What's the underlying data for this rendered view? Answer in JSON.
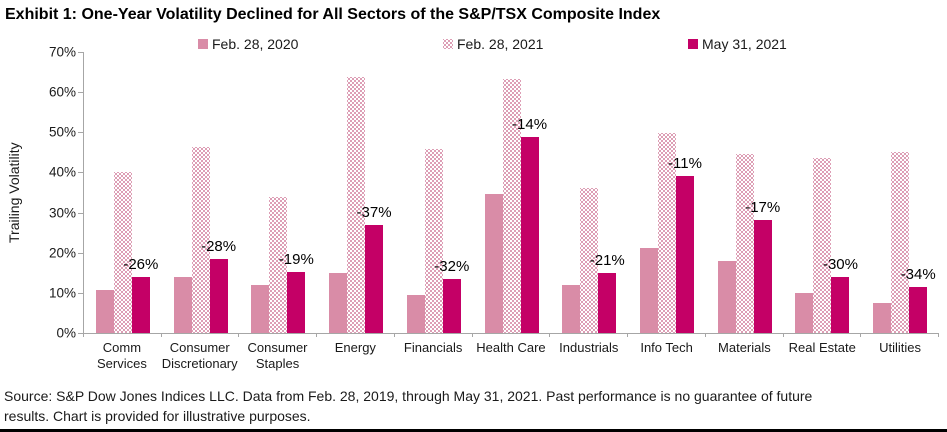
{
  "page": {
    "title": "Exhibit 1: One-Year Volatility Declined for All Sectors of the S&P/TSX Composite Index"
  },
  "legend": {
    "items": [
      {
        "label": "Feb. 28, 2020"
      },
      {
        "label": "Feb. 28, 2021"
      },
      {
        "label": "May 31, 2021"
      }
    ]
  },
  "colors": {
    "feb2020": "#d98ca7",
    "feb2021_dot": "#d27d9c",
    "may2021": "#c40066",
    "axis": "#a6a6a6"
  },
  "chart_data": {
    "type": "bar",
    "title": "Exhibit 1: One-Year Volatility Declined for All Sectors of the S&P/TSX Composite Index",
    "ylabel": "Trailing Volatility",
    "xlabel": "",
    "ylim": [
      0,
      70
    ],
    "ytick_labels": [
      "70%",
      "60%",
      "50%",
      "40%",
      "30%",
      "20%",
      "10%",
      "0%"
    ],
    "grid": false,
    "legend_position": "top",
    "categories": [
      "Comm Services",
      "Consumer Discretionary",
      "Consumer Staples",
      "Energy",
      "Financials",
      "Health Care",
      "Industrials",
      "Info Tech",
      "Materials",
      "Real Estate",
      "Utilities"
    ],
    "series": [
      {
        "name": "Feb. 28, 2020",
        "values": [
          10.7,
          14.0,
          12.0,
          15.0,
          9.4,
          34.7,
          12.0,
          21.2,
          17.9,
          10.0,
          7.6
        ]
      },
      {
        "name": "Feb. 28, 2021",
        "values": [
          40.1,
          46.3,
          34.0,
          63.7,
          45.9,
          63.2,
          36.2,
          49.8,
          44.7,
          43.5,
          45.2
        ]
      },
      {
        "name": "May 31, 2021",
        "values": [
          14.0,
          18.5,
          15.2,
          26.9,
          13.5,
          48.8,
          15.0,
          39.1,
          28.1,
          14.0,
          11.5
        ]
      }
    ],
    "bar_labels": [
      "-26%",
      "-28%",
      "-19%",
      "-37%",
      "-32%",
      "-14%",
      "-21%",
      "-11%",
      "-17%",
      "-30%",
      "-34%"
    ]
  },
  "source_lines": [
    "Source: S&P Dow Jones Indices LLC. Data from Feb. 28, 2019, through May 31, 2021. Past performance is no guarantee of future",
    "results. Chart is provided for illustrative purposes."
  ]
}
